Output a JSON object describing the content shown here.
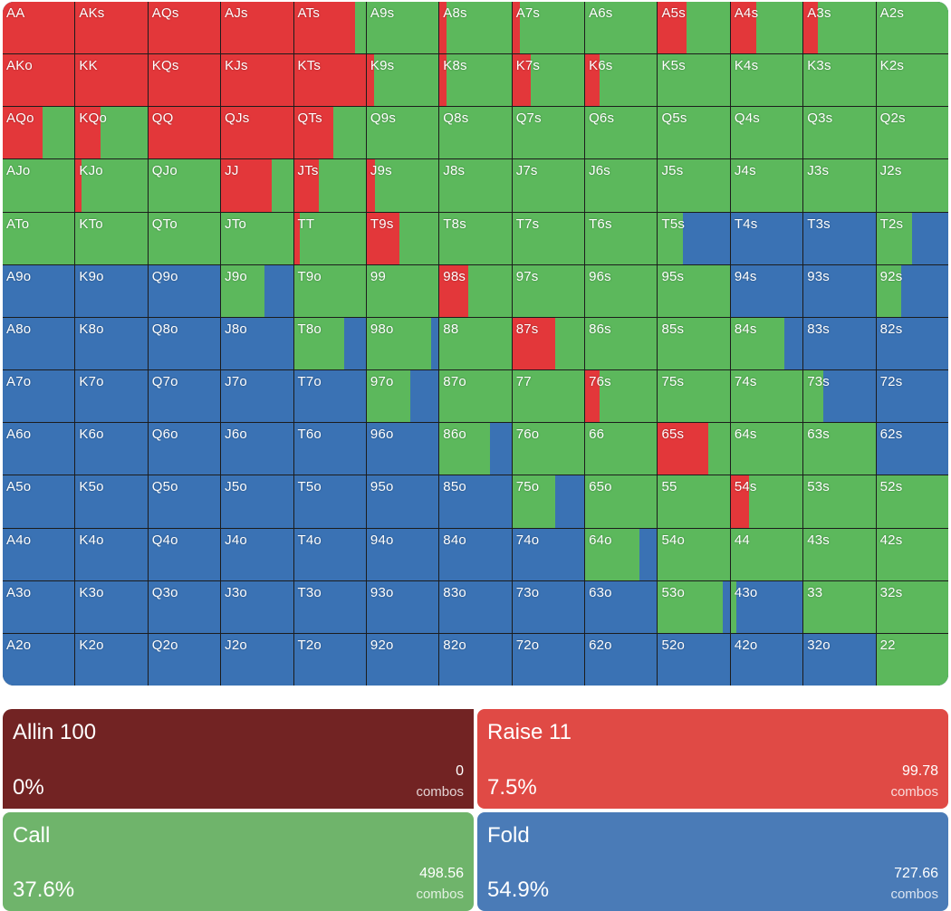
{
  "colors": {
    "raise": "#e3373a",
    "call": "#5cb85c",
    "fold": "#3a72b4",
    "allin": "#722323"
  },
  "hands": [
    {
      "label": "AA",
      "raise": 100,
      "call": 0
    },
    {
      "label": "AKs",
      "raise": 100,
      "call": 0
    },
    {
      "label": "AQs",
      "raise": 100,
      "call": 0
    },
    {
      "label": "AJs",
      "raise": 100,
      "call": 0
    },
    {
      "label": "ATs",
      "raise": 85,
      "call": 15
    },
    {
      "label": "A9s",
      "raise": 0,
      "call": 100
    },
    {
      "label": "A8s",
      "raise": 10,
      "call": 90
    },
    {
      "label": "A7s",
      "raise": 10,
      "call": 90
    },
    {
      "label": "A6s",
      "raise": 0,
      "call": 100
    },
    {
      "label": "A5s",
      "raise": 40,
      "call": 60
    },
    {
      "label": "A4s",
      "raise": 35,
      "call": 65
    },
    {
      "label": "A3s",
      "raise": 20,
      "call": 80
    },
    {
      "label": "A2s",
      "raise": 0,
      "call": 100
    },
    {
      "label": "AKo",
      "raise": 100,
      "call": 0
    },
    {
      "label": "KK",
      "raise": 100,
      "call": 0
    },
    {
      "label": "KQs",
      "raise": 100,
      "call": 0
    },
    {
      "label": "KJs",
      "raise": 100,
      "call": 0
    },
    {
      "label": "KTs",
      "raise": 100,
      "call": 0
    },
    {
      "label": "K9s",
      "raise": 10,
      "call": 90
    },
    {
      "label": "K8s",
      "raise": 10,
      "call": 90
    },
    {
      "label": "K7s",
      "raise": 25,
      "call": 75
    },
    {
      "label": "K6s",
      "raise": 20,
      "call": 80
    },
    {
      "label": "K5s",
      "raise": 0,
      "call": 100
    },
    {
      "label": "K4s",
      "raise": 0,
      "call": 100
    },
    {
      "label": "K3s",
      "raise": 0,
      "call": 100
    },
    {
      "label": "K2s",
      "raise": 0,
      "call": 100
    },
    {
      "label": "AQo",
      "raise": 55,
      "call": 45
    },
    {
      "label": "KQo",
      "raise": 35,
      "call": 65
    },
    {
      "label": "QQ",
      "raise": 100,
      "call": 0
    },
    {
      "label": "QJs",
      "raise": 100,
      "call": 0
    },
    {
      "label": "QTs",
      "raise": 55,
      "call": 45
    },
    {
      "label": "Q9s",
      "raise": 0,
      "call": 100
    },
    {
      "label": "Q8s",
      "raise": 0,
      "call": 100
    },
    {
      "label": "Q7s",
      "raise": 0,
      "call": 100
    },
    {
      "label": "Q6s",
      "raise": 0,
      "call": 100
    },
    {
      "label": "Q5s",
      "raise": 0,
      "call": 100
    },
    {
      "label": "Q4s",
      "raise": 0,
      "call": 100
    },
    {
      "label": "Q3s",
      "raise": 0,
      "call": 100
    },
    {
      "label": "Q2s",
      "raise": 0,
      "call": 100
    },
    {
      "label": "AJo",
      "raise": 0,
      "call": 100
    },
    {
      "label": "KJo",
      "raise": 8,
      "call": 92
    },
    {
      "label": "QJo",
      "raise": 0,
      "call": 100
    },
    {
      "label": "JJ",
      "raise": 70,
      "call": 30
    },
    {
      "label": "JTs",
      "raise": 35,
      "call": 65
    },
    {
      "label": "J9s",
      "raise": 12,
      "call": 88
    },
    {
      "label": "J8s",
      "raise": 0,
      "call": 100
    },
    {
      "label": "J7s",
      "raise": 0,
      "call": 100
    },
    {
      "label": "J6s",
      "raise": 0,
      "call": 100
    },
    {
      "label": "J5s",
      "raise": 0,
      "call": 100
    },
    {
      "label": "J4s",
      "raise": 0,
      "call": 100
    },
    {
      "label": "J3s",
      "raise": 0,
      "call": 100
    },
    {
      "label": "J2s",
      "raise": 0,
      "call": 100
    },
    {
      "label": "ATo",
      "raise": 0,
      "call": 100
    },
    {
      "label": "KTo",
      "raise": 0,
      "call": 100
    },
    {
      "label": "QTo",
      "raise": 0,
      "call": 100
    },
    {
      "label": "JTo",
      "raise": 0,
      "call": 100
    },
    {
      "label": "TT",
      "raise": 8,
      "call": 92
    },
    {
      "label": "T9s",
      "raise": 45,
      "call": 55
    },
    {
      "label": "T8s",
      "raise": 0,
      "call": 100
    },
    {
      "label": "T7s",
      "raise": 0,
      "call": 100
    },
    {
      "label": "T6s",
      "raise": 0,
      "call": 100
    },
    {
      "label": "T5s",
      "raise": 0,
      "call": 35
    },
    {
      "label": "T4s",
      "raise": 0,
      "call": 0
    },
    {
      "label": "T3s",
      "raise": 0,
      "call": 0
    },
    {
      "label": "T2s",
      "raise": 0,
      "call": 50
    },
    {
      "label": "A9o",
      "raise": 0,
      "call": 0
    },
    {
      "label": "K9o",
      "raise": 0,
      "call": 0
    },
    {
      "label": "Q9o",
      "raise": 0,
      "call": 0
    },
    {
      "label": "J9o",
      "raise": 0,
      "call": 60
    },
    {
      "label": "T9o",
      "raise": 0,
      "call": 100
    },
    {
      "label": "99",
      "raise": 0,
      "call": 100
    },
    {
      "label": "98s",
      "raise": 40,
      "call": 60
    },
    {
      "label": "97s",
      "raise": 0,
      "call": 100
    },
    {
      "label": "96s",
      "raise": 0,
      "call": 100
    },
    {
      "label": "95s",
      "raise": 0,
      "call": 100
    },
    {
      "label": "94s",
      "raise": 0,
      "call": 0
    },
    {
      "label": "93s",
      "raise": 0,
      "call": 0
    },
    {
      "label": "92s",
      "raise": 0,
      "call": 35
    },
    {
      "label": "A8o",
      "raise": 0,
      "call": 0
    },
    {
      "label": "K8o",
      "raise": 0,
      "call": 0
    },
    {
      "label": "Q8o",
      "raise": 0,
      "call": 0
    },
    {
      "label": "J8o",
      "raise": 0,
      "call": 0
    },
    {
      "label": "T8o",
      "raise": 0,
      "call": 70
    },
    {
      "label": "98o",
      "raise": 0,
      "call": 90
    },
    {
      "label": "88",
      "raise": 0,
      "call": 100
    },
    {
      "label": "87s",
      "raise": 60,
      "call": 40
    },
    {
      "label": "86s",
      "raise": 0,
      "call": 100
    },
    {
      "label": "85s",
      "raise": 0,
      "call": 100
    },
    {
      "label": "84s",
      "raise": 0,
      "call": 75
    },
    {
      "label": "83s",
      "raise": 0,
      "call": 0
    },
    {
      "label": "82s",
      "raise": 0,
      "call": 0
    },
    {
      "label": "A7o",
      "raise": 0,
      "call": 0
    },
    {
      "label": "K7o",
      "raise": 0,
      "call": 0
    },
    {
      "label": "Q7o",
      "raise": 0,
      "call": 0
    },
    {
      "label": "J7o",
      "raise": 0,
      "call": 0
    },
    {
      "label": "T7o",
      "raise": 0,
      "call": 0
    },
    {
      "label": "97o",
      "raise": 0,
      "call": 60
    },
    {
      "label": "87o",
      "raise": 0,
      "call": 100
    },
    {
      "label": "77",
      "raise": 0,
      "call": 100
    },
    {
      "label": "76s",
      "raise": 20,
      "call": 80
    },
    {
      "label": "75s",
      "raise": 0,
      "call": 100
    },
    {
      "label": "74s",
      "raise": 0,
      "call": 100
    },
    {
      "label": "73s",
      "raise": 0,
      "call": 28
    },
    {
      "label": "72s",
      "raise": 0,
      "call": 0
    },
    {
      "label": "A6o",
      "raise": 0,
      "call": 0
    },
    {
      "label": "K6o",
      "raise": 0,
      "call": 0
    },
    {
      "label": "Q6o",
      "raise": 0,
      "call": 0
    },
    {
      "label": "J6o",
      "raise": 0,
      "call": 0
    },
    {
      "label": "T6o",
      "raise": 0,
      "call": 0
    },
    {
      "label": "96o",
      "raise": 0,
      "call": 0
    },
    {
      "label": "86o",
      "raise": 0,
      "call": 70
    },
    {
      "label": "76o",
      "raise": 0,
      "call": 100
    },
    {
      "label": "66",
      "raise": 0,
      "call": 100
    },
    {
      "label": "65s",
      "raise": 70,
      "call": 30
    },
    {
      "label": "64s",
      "raise": 0,
      "call": 100
    },
    {
      "label": "63s",
      "raise": 0,
      "call": 100
    },
    {
      "label": "62s",
      "raise": 0,
      "call": 0
    },
    {
      "label": "A5o",
      "raise": 0,
      "call": 0
    },
    {
      "label": "K5o",
      "raise": 0,
      "call": 0
    },
    {
      "label": "Q5o",
      "raise": 0,
      "call": 0
    },
    {
      "label": "J5o",
      "raise": 0,
      "call": 0
    },
    {
      "label": "T5o",
      "raise": 0,
      "call": 0
    },
    {
      "label": "95o",
      "raise": 0,
      "call": 0
    },
    {
      "label": "85o",
      "raise": 0,
      "call": 0
    },
    {
      "label": "75o",
      "raise": 0,
      "call": 60
    },
    {
      "label": "65o",
      "raise": 0,
      "call": 100
    },
    {
      "label": "55",
      "raise": 0,
      "call": 100
    },
    {
      "label": "54s",
      "raise": 25,
      "call": 75
    },
    {
      "label": "53s",
      "raise": 0,
      "call": 100
    },
    {
      "label": "52s",
      "raise": 0,
      "call": 100
    },
    {
      "label": "A4o",
      "raise": 0,
      "call": 0
    },
    {
      "label": "K4o",
      "raise": 0,
      "call": 0
    },
    {
      "label": "Q4o",
      "raise": 0,
      "call": 0
    },
    {
      "label": "J4o",
      "raise": 0,
      "call": 0
    },
    {
      "label": "T4o",
      "raise": 0,
      "call": 0
    },
    {
      "label": "94o",
      "raise": 0,
      "call": 0
    },
    {
      "label": "84o",
      "raise": 0,
      "call": 0
    },
    {
      "label": "74o",
      "raise": 0,
      "call": 0
    },
    {
      "label": "64o",
      "raise": 0,
      "call": 75
    },
    {
      "label": "54o",
      "raise": 0,
      "call": 100
    },
    {
      "label": "44",
      "raise": 0,
      "call": 100
    },
    {
      "label": "43s",
      "raise": 0,
      "call": 100
    },
    {
      "label": "42s",
      "raise": 0,
      "call": 100
    },
    {
      "label": "A3o",
      "raise": 0,
      "call": 0
    },
    {
      "label": "K3o",
      "raise": 0,
      "call": 0
    },
    {
      "label": "Q3o",
      "raise": 0,
      "call": 0
    },
    {
      "label": "J3o",
      "raise": 0,
      "call": 0
    },
    {
      "label": "T3o",
      "raise": 0,
      "call": 0
    },
    {
      "label": "93o",
      "raise": 0,
      "call": 0
    },
    {
      "label": "83o",
      "raise": 0,
      "call": 0
    },
    {
      "label": "73o",
      "raise": 0,
      "call": 0
    },
    {
      "label": "63o",
      "raise": 0,
      "call": 0
    },
    {
      "label": "53o",
      "raise": 0,
      "call": 90
    },
    {
      "label": "43o",
      "raise": 0,
      "call": 8
    },
    {
      "label": "33",
      "raise": 0,
      "call": 100
    },
    {
      "label": "32s",
      "raise": 0,
      "call": 100
    },
    {
      "label": "A2o",
      "raise": 0,
      "call": 0
    },
    {
      "label": "K2o",
      "raise": 0,
      "call": 0
    },
    {
      "label": "Q2o",
      "raise": 0,
      "call": 0
    },
    {
      "label": "J2o",
      "raise": 0,
      "call": 0
    },
    {
      "label": "T2o",
      "raise": 0,
      "call": 0
    },
    {
      "label": "92o",
      "raise": 0,
      "call": 0
    },
    {
      "label": "82o",
      "raise": 0,
      "call": 0
    },
    {
      "label": "72o",
      "raise": 0,
      "call": 0
    },
    {
      "label": "62o",
      "raise": 0,
      "call": 0
    },
    {
      "label": "52o",
      "raise": 0,
      "call": 0
    },
    {
      "label": "42o",
      "raise": 0,
      "call": 0
    },
    {
      "label": "32o",
      "raise": 0,
      "call": 0
    },
    {
      "label": "22",
      "raise": 0,
      "call": 100
    }
  ],
  "summary": {
    "allin": {
      "title": "Allin 100",
      "combos": "0",
      "unit": "combos",
      "pct": "0%"
    },
    "raise": {
      "title": "Raise 11",
      "combos": "99.78",
      "unit": "combos",
      "pct": "7.5%"
    },
    "call": {
      "title": "Call",
      "combos": "498.56",
      "unit": "combos",
      "pct": "37.6%"
    },
    "fold": {
      "title": "Fold",
      "combos": "727.66",
      "unit": "combos",
      "pct": "54.9%"
    }
  }
}
